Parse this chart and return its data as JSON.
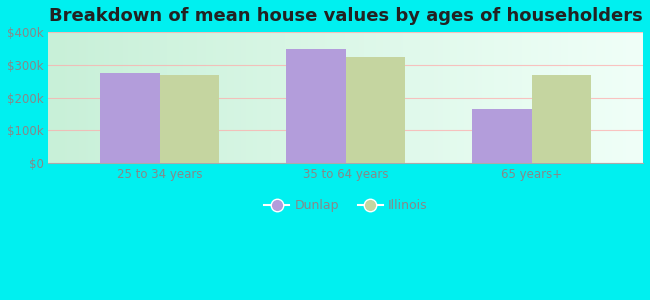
{
  "title": "Breakdown of mean house values by ages of householders",
  "categories": [
    "25 to 34 years",
    "35 to 64 years",
    "65 years+"
  ],
  "dunlap_values": [
    275000,
    347000,
    165000
  ],
  "illinois_values": [
    268000,
    323000,
    268000
  ],
  "dunlap_color": "#b39ddb",
  "illinois_color": "#c5d5a0",
  "ylim": [
    0,
    400000
  ],
  "yticks": [
    0,
    100000,
    200000,
    300000,
    400000
  ],
  "ytick_labels": [
    "$0",
    "$100k",
    "$200k",
    "$300k",
    "$400k"
  ],
  "bar_width": 0.32,
  "legend_labels": [
    "Dunlap",
    "Illinois"
  ],
  "background_color": "#00f0f0",
  "plot_bg_color": "#edfff0",
  "title_fontsize": 13,
  "tick_color": "#888888",
  "grid_color": "#ff9999",
  "grid_alpha": 0.5
}
